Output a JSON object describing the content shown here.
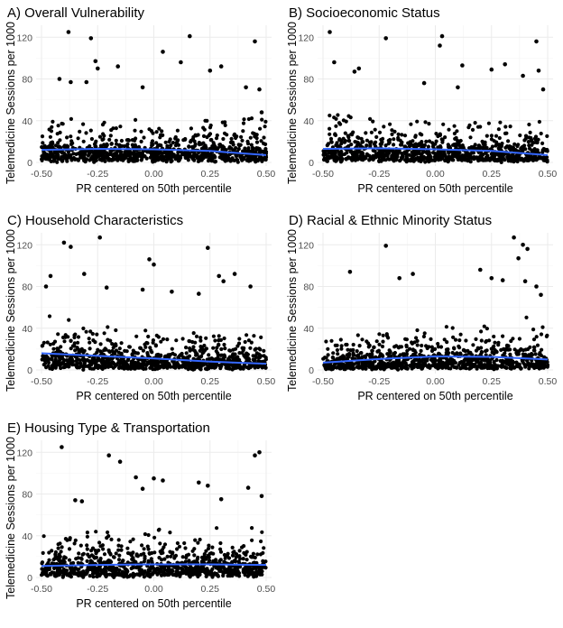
{
  "chart_data": [
    {
      "type": "scatter",
      "title": "A) Overall Vulnerability",
      "xlabel": "PR centered on 50th percentile",
      "ylabel": "Telemedicine Sessions per 1000",
      "xlim": [
        -0.5,
        0.5
      ],
      "ylim": [
        0,
        128
      ],
      "x_ticks": [
        "-0.50",
        "-0.25",
        "0.00",
        "0.25",
        "0.50"
      ],
      "y_ticks": [
        "0",
        "40",
        "80",
        "120"
      ],
      "grid": true,
      "trend_line": {
        "x": [
          -0.5,
          -0.25,
          0.0,
          0.25,
          0.5
        ],
        "y": [
          12,
          13,
          12.5,
          11,
          7
        ]
      },
      "outliers": [
        [
          -0.38,
          125
        ],
        [
          -0.28,
          119
        ],
        [
          -0.26,
          97
        ],
        [
          -0.25,
          90
        ],
        [
          -0.42,
          80
        ],
        [
          -0.37,
          77
        ],
        [
          -0.3,
          77
        ],
        [
          -0.16,
          92
        ],
        [
          -0.05,
          72
        ],
        [
          0.04,
          106
        ],
        [
          0.12,
          96
        ],
        [
          0.16,
          121
        ],
        [
          0.25,
          88
        ],
        [
          0.45,
          116
        ],
        [
          0.47,
          70
        ],
        [
          0.41,
          72
        ],
        [
          0.3,
          92
        ],
        [
          0.48,
          48
        ]
      ],
      "cloud": {
        "count": 900,
        "seed": 11,
        "scale": [
          16,
          14,
          16
        ]
      }
    },
    {
      "type": "scatter",
      "title": "B) Socioeconomic Status",
      "xlabel": "PR centered on 50th percentile",
      "ylabel": "Telemedicine Sessions per 1000",
      "xlim": [
        -0.5,
        0.5
      ],
      "ylim": [
        0,
        128
      ],
      "x_ticks": [
        "-0.50",
        "-0.25",
        "0.00",
        "0.25",
        "0.50"
      ],
      "y_ticks": [
        "0",
        "40",
        "80",
        "120"
      ],
      "grid": true,
      "trend_line": {
        "x": [
          -0.5,
          -0.25,
          0.0,
          0.25,
          0.5
        ],
        "y": [
          13,
          13.5,
          12.5,
          11,
          7
        ]
      },
      "outliers": [
        [
          -0.47,
          125
        ],
        [
          -0.45,
          96
        ],
        [
          -0.36,
          87
        ],
        [
          -0.34,
          90
        ],
        [
          -0.22,
          119
        ],
        [
          -0.05,
          76
        ],
        [
          0.02,
          112
        ],
        [
          0.03,
          121
        ],
        [
          0.12,
          93
        ],
        [
          0.25,
          89
        ],
        [
          0.31,
          94
        ],
        [
          0.39,
          83
        ],
        [
          0.45,
          116
        ],
        [
          0.46,
          88
        ],
        [
          0.48,
          70
        ],
        [
          0.1,
          72
        ]
      ],
      "cloud": {
        "count": 900,
        "seed": 23,
        "scale": [
          19,
          15,
          15
        ]
      }
    },
    {
      "type": "scatter",
      "title": "C) Household Characteristics",
      "xlabel": "PR centered on 50th percentile",
      "ylabel": "Telemedicine Sessions per 1000",
      "xlim": [
        -0.5,
        0.5
      ],
      "ylim": [
        0,
        128
      ],
      "x_ticks": [
        "-0.50",
        "-0.25",
        "0.00",
        "0.25",
        "0.50"
      ],
      "y_ticks": [
        "0",
        "40",
        "80",
        "120"
      ],
      "grid": true,
      "trend_line": {
        "x": [
          -0.5,
          -0.25,
          0.0,
          0.25,
          0.5
        ],
        "y": [
          16,
          13.5,
          11,
          8,
          6
        ]
      },
      "outliers": [
        [
          -0.48,
          80
        ],
        [
          -0.46,
          90
        ],
        [
          -0.4,
          122
        ],
        [
          -0.37,
          118
        ],
        [
          -0.31,
          92
        ],
        [
          -0.24,
          127
        ],
        [
          -0.21,
          79
        ],
        [
          -0.02,
          106
        ],
        [
          0.0,
          101
        ],
        [
          0.08,
          75
        ],
        [
          0.2,
          73
        ],
        [
          0.24,
          117
        ],
        [
          0.29,
          90
        ],
        [
          0.31,
          85
        ],
        [
          0.36,
          92
        ],
        [
          0.43,
          80
        ],
        [
          -0.05,
          77
        ]
      ],
      "cloud": {
        "count": 900,
        "seed": 37,
        "scale": [
          20,
          15,
          12
        ]
      }
    },
    {
      "type": "scatter",
      "title": "D) Racial & Ethnic Minority Status",
      "xlabel": "PR centered on 50th percentile",
      "ylabel": "Telemedicine Sessions per 1000",
      "xlim": [
        -0.5,
        0.5
      ],
      "ylim": [
        0,
        128
      ],
      "x_ticks": [
        "-0.50",
        "-0.25",
        "0.00",
        "0.25",
        "0.50"
      ],
      "y_ticks": [
        "0",
        "40",
        "80",
        "120"
      ],
      "grid": true,
      "trend_line": {
        "x": [
          -0.5,
          -0.25,
          0.0,
          0.25,
          0.5
        ],
        "y": [
          7,
          10.5,
          13,
          12.5,
          10
        ]
      },
      "outliers": [
        [
          -0.38,
          94
        ],
        [
          -0.22,
          119
        ],
        [
          -0.16,
          88
        ],
        [
          -0.1,
          92
        ],
        [
          0.2,
          96
        ],
        [
          0.25,
          88
        ],
        [
          0.3,
          86
        ],
        [
          0.35,
          127
        ],
        [
          0.37,
          107
        ],
        [
          0.39,
          120
        ],
        [
          0.41,
          116
        ],
        [
          0.4,
          85
        ],
        [
          0.47,
          72
        ],
        [
          0.45,
          80
        ]
      ],
      "cloud": {
        "count": 900,
        "seed": 53,
        "scale": [
          12,
          16,
          18
        ]
      }
    },
    {
      "type": "scatter",
      "title": "E) Housing Type & Transportation",
      "xlabel": "PR centered on 50th percentile",
      "ylabel": "Telemedicine Sessions per 1000",
      "xlim": [
        -0.5,
        0.5
      ],
      "ylim": [
        0,
        128
      ],
      "x_ticks": [
        "-0.50",
        "-0.25",
        "0.00",
        "0.25",
        "0.50"
      ],
      "y_ticks": [
        "0",
        "40",
        "80",
        "120"
      ],
      "grid": true,
      "trend_line": {
        "x": [
          -0.5,
          -0.25,
          0.0,
          0.25,
          0.5
        ],
        "y": [
          11,
          12,
          12.5,
          12.5,
          12
        ]
      },
      "outliers": [
        [
          -0.41,
          125
        ],
        [
          -0.35,
          74
        ],
        [
          -0.32,
          73
        ],
        [
          -0.2,
          117
        ],
        [
          -0.15,
          111
        ],
        [
          -0.08,
          96
        ],
        [
          -0.05,
          85
        ],
        [
          0.0,
          95
        ],
        [
          0.04,
          93
        ],
        [
          0.2,
          91
        ],
        [
          0.24,
          88
        ],
        [
          0.3,
          75
        ],
        [
          0.42,
          86
        ],
        [
          0.45,
          117
        ],
        [
          0.47,
          120
        ],
        [
          0.48,
          78
        ]
      ],
      "cloud": {
        "count": 900,
        "seed": 71,
        "scale": [
          16,
          16,
          17
        ]
      }
    }
  ]
}
